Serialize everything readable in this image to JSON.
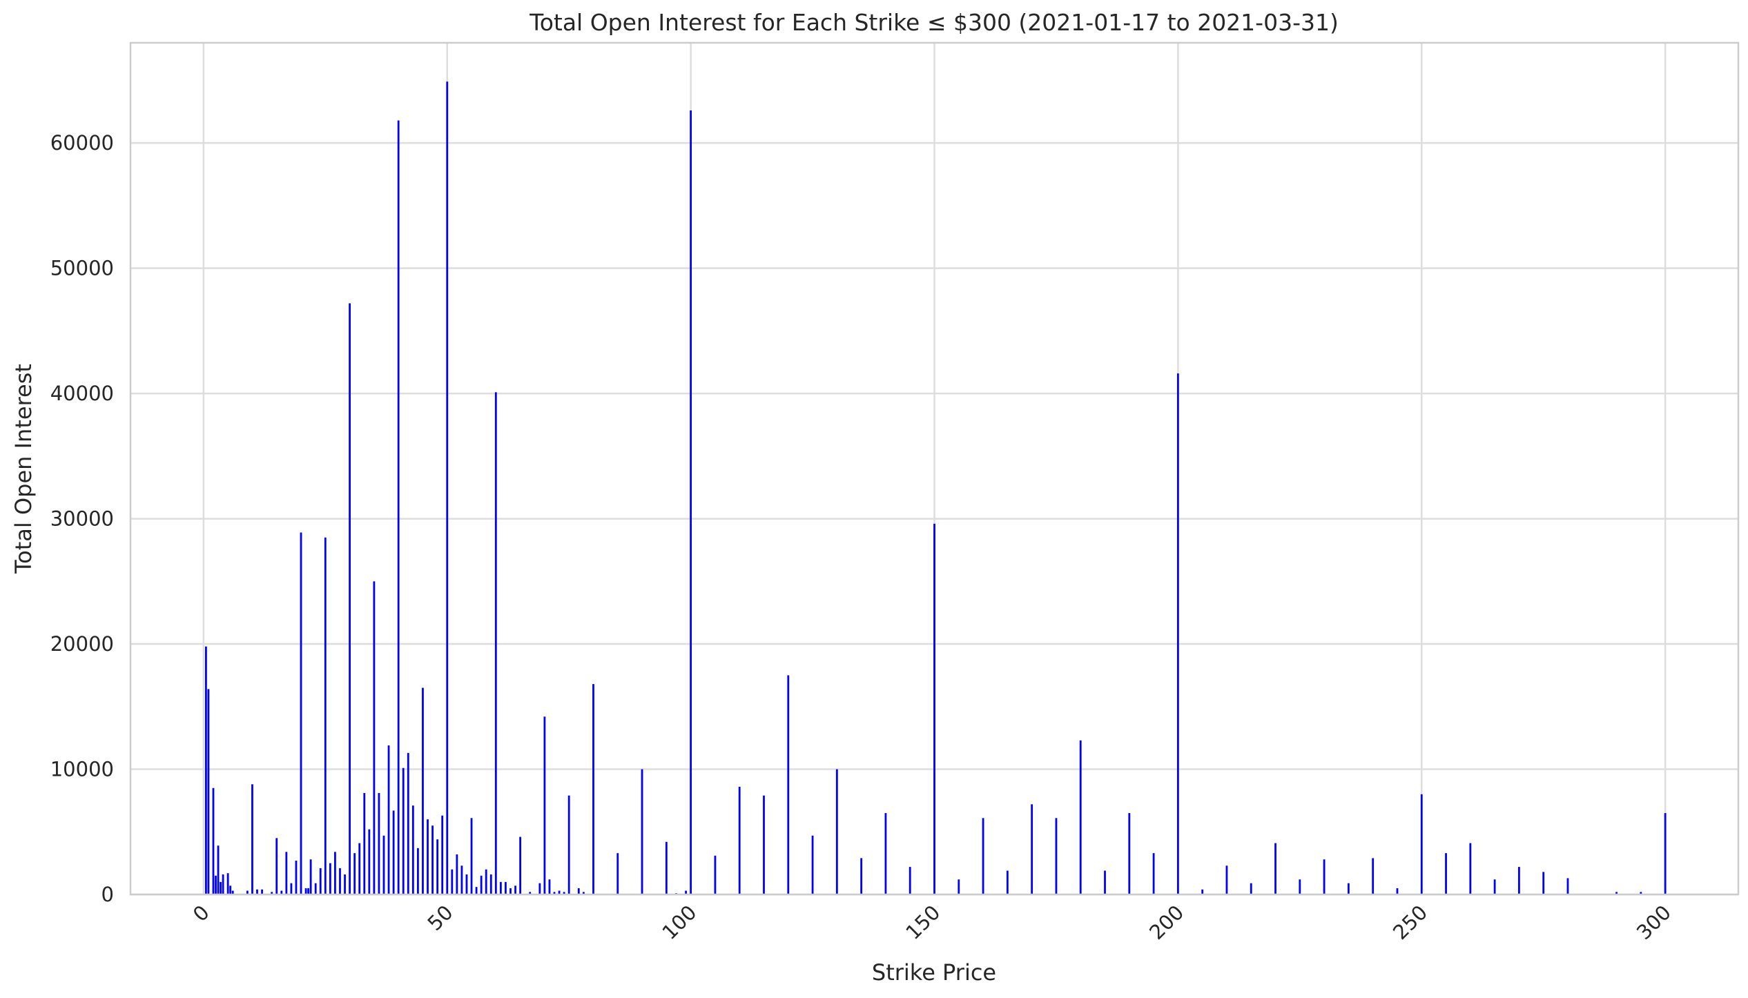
{
  "chart_data": {
    "type": "bar",
    "title": "Total Open Interest for Each Strike ≤ $300 (2021-01-17 to 2021-03-31)",
    "xlabel": "Strike Price",
    "ylabel": "Total Open Interest",
    "xlim": [
      -15,
      315
    ],
    "ylim": [
      0,
      68000
    ],
    "xticks": [
      0,
      50,
      100,
      150,
      200,
      250,
      300
    ],
    "yticks": [
      0,
      10000,
      20000,
      30000,
      40000,
      50000,
      60000
    ],
    "xtick_rotation": 45,
    "grid": true,
    "bar_color": "#0000ff",
    "points": [
      {
        "x": 0.5,
        "y": 19800
      },
      {
        "x": 1,
        "y": 16400
      },
      {
        "x": 2,
        "y": 8500
      },
      {
        "x": 2.5,
        "y": 1500
      },
      {
        "x": 3,
        "y": 3900
      },
      {
        "x": 3.5,
        "y": 1000
      },
      {
        "x": 4,
        "y": 1600
      },
      {
        "x": 5,
        "y": 1700
      },
      {
        "x": 5.5,
        "y": 700
      },
      {
        "x": 6,
        "y": 300
      },
      {
        "x": 9,
        "y": 300
      },
      {
        "x": 10,
        "y": 8800
      },
      {
        "x": 11,
        "y": 400
      },
      {
        "x": 12,
        "y": 400
      },
      {
        "x": 14,
        "y": 200
      },
      {
        "x": 15,
        "y": 4500
      },
      {
        "x": 16,
        "y": 300
      },
      {
        "x": 17,
        "y": 3400
      },
      {
        "x": 18,
        "y": 900
      },
      {
        "x": 19,
        "y": 2700
      },
      {
        "x": 20,
        "y": 28900
      },
      {
        "x": 21,
        "y": 500
      },
      {
        "x": 21.5,
        "y": 500
      },
      {
        "x": 22,
        "y": 2800
      },
      {
        "x": 23,
        "y": 900
      },
      {
        "x": 24,
        "y": 2100
      },
      {
        "x": 25,
        "y": 28500
      },
      {
        "x": 26,
        "y": 2500
      },
      {
        "x": 27,
        "y": 3400
      },
      {
        "x": 28,
        "y": 2100
      },
      {
        "x": 29,
        "y": 1600
      },
      {
        "x": 30,
        "y": 47200
      },
      {
        "x": 31,
        "y": 3300
      },
      {
        "x": 32,
        "y": 4100
      },
      {
        "x": 33,
        "y": 8100
      },
      {
        "x": 34,
        "y": 5200
      },
      {
        "x": 35,
        "y": 25000
      },
      {
        "x": 36,
        "y": 8100
      },
      {
        "x": 37,
        "y": 4700
      },
      {
        "x": 38,
        "y": 11900
      },
      {
        "x": 39,
        "y": 6700
      },
      {
        "x": 40,
        "y": 61800
      },
      {
        "x": 41,
        "y": 10100
      },
      {
        "x": 42,
        "y": 11300
      },
      {
        "x": 43,
        "y": 7100
      },
      {
        "x": 44,
        "y": 3700
      },
      {
        "x": 45,
        "y": 16500
      },
      {
        "x": 46,
        "y": 6000
      },
      {
        "x": 47,
        "y": 5500
      },
      {
        "x": 48,
        "y": 4400
      },
      {
        "x": 49,
        "y": 6300
      },
      {
        "x": 50,
        "y": 64900
      },
      {
        "x": 51,
        "y": 2000
      },
      {
        "x": 52,
        "y": 3200
      },
      {
        "x": 53,
        "y": 2300
      },
      {
        "x": 54,
        "y": 1600
      },
      {
        "x": 55,
        "y": 6100
      },
      {
        "x": 56,
        "y": 600
      },
      {
        "x": 57,
        "y": 1500
      },
      {
        "x": 58,
        "y": 2000
      },
      {
        "x": 59,
        "y": 1600
      },
      {
        "x": 60,
        "y": 40100
      },
      {
        "x": 61,
        "y": 1000
      },
      {
        "x": 62,
        "y": 1000
      },
      {
        "x": 63,
        "y": 500
      },
      {
        "x": 64,
        "y": 700
      },
      {
        "x": 65,
        "y": 4600
      },
      {
        "x": 67,
        "y": 200
      },
      {
        "x": 69,
        "y": 900
      },
      {
        "x": 70,
        "y": 14200
      },
      {
        "x": 71,
        "y": 1200
      },
      {
        "x": 72,
        "y": 200
      },
      {
        "x": 73,
        "y": 300
      },
      {
        "x": 74,
        "y": 200
      },
      {
        "x": 75,
        "y": 7900
      },
      {
        "x": 77,
        "y": 500
      },
      {
        "x": 78,
        "y": 200
      },
      {
        "x": 80,
        "y": 16800
      },
      {
        "x": 85,
        "y": 3300
      },
      {
        "x": 90,
        "y": 10000
      },
      {
        "x": 95,
        "y": 4200
      },
      {
        "x": 97,
        "y": 100
      },
      {
        "x": 99,
        "y": 300
      },
      {
        "x": 100,
        "y": 62600
      },
      {
        "x": 105,
        "y": 3100
      },
      {
        "x": 110,
        "y": 8600
      },
      {
        "x": 115,
        "y": 7900
      },
      {
        "x": 120,
        "y": 17500
      },
      {
        "x": 125,
        "y": 4700
      },
      {
        "x": 130,
        "y": 10000
      },
      {
        "x": 135,
        "y": 2900
      },
      {
        "x": 140,
        "y": 6500
      },
      {
        "x": 145,
        "y": 2200
      },
      {
        "x": 150,
        "y": 29600
      },
      {
        "x": 155,
        "y": 1200
      },
      {
        "x": 160,
        "y": 6100
      },
      {
        "x": 165,
        "y": 1900
      },
      {
        "x": 170,
        "y": 7200
      },
      {
        "x": 175,
        "y": 6100
      },
      {
        "x": 180,
        "y": 12300
      },
      {
        "x": 185,
        "y": 1900
      },
      {
        "x": 190,
        "y": 6500
      },
      {
        "x": 195,
        "y": 3300
      },
      {
        "x": 200,
        "y": 41600
      },
      {
        "x": 205,
        "y": 400
      },
      {
        "x": 210,
        "y": 2300
      },
      {
        "x": 215,
        "y": 900
      },
      {
        "x": 220,
        "y": 4100
      },
      {
        "x": 225,
        "y": 1200
      },
      {
        "x": 230,
        "y": 2800
      },
      {
        "x": 235,
        "y": 900
      },
      {
        "x": 240,
        "y": 2900
      },
      {
        "x": 245,
        "y": 500
      },
      {
        "x": 250,
        "y": 8000
      },
      {
        "x": 255,
        "y": 3300
      },
      {
        "x": 260,
        "y": 4100
      },
      {
        "x": 265,
        "y": 1200
      },
      {
        "x": 270,
        "y": 2200
      },
      {
        "x": 275,
        "y": 1800
      },
      {
        "x": 280,
        "y": 1300
      },
      {
        "x": 290,
        "y": 200
      },
      {
        "x": 295,
        "y": 200
      },
      {
        "x": 300,
        "y": 6500
      }
    ]
  }
}
